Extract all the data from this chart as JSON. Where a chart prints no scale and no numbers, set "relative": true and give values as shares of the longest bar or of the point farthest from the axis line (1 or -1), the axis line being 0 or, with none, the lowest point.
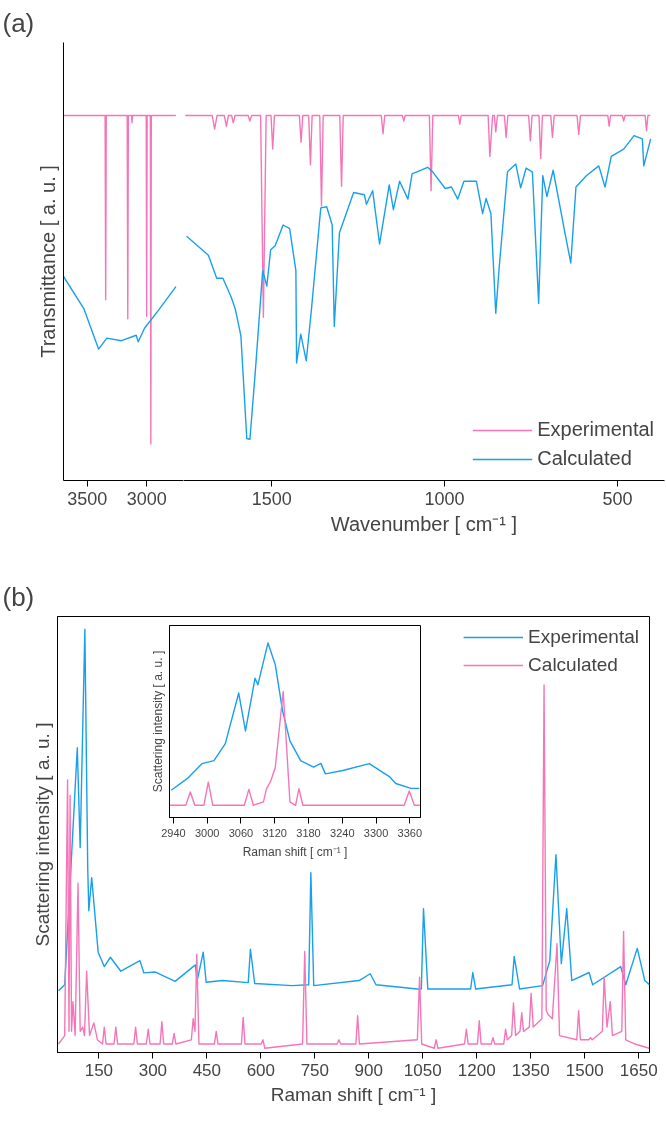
{
  "chart_data": [
    {
      "type": "line",
      "title": "(a)",
      "ylabel": "Transmittance [ a. u. ]",
      "relative": true,
      "tick_labels": "x",
      "xlim": [
        3700,
        2690
      ],
      "xticks": [
        3500,
        3000
      ],
      "series": [
        {
          "color": "#f576b8",
          "x": [
            3700,
            3350,
            3345,
            3340,
            3164,
            3159,
            3154,
            3127,
            3123,
            3119,
            3004,
            3000,
            2996,
            2969,
            2965,
            2961,
            2754
          ],
          "values": [
            1,
            1,
            0.495,
            1,
            1,
            0.443,
            1,
            1,
            0.98,
            1,
            1,
            0.45,
            1,
            1,
            0.1,
            1,
            1
          ]
        },
        {
          "color": "#18a0ec",
          "x": [
            3700,
            3529,
            3405,
            3335,
            3212,
            3088,
            3071,
            3018,
            2895,
            2754
          ],
          "values": [
            0.559,
            0.471,
            0.36,
            0.39,
            0.383,
            0.398,
            0.38,
            0.417,
            0.469,
            0.531
          ]
        }
      ]
    },
    {
      "type": "line",
      "xlabel": "Wavenumber [ cm⁻¹ ]",
      "relative": true,
      "tick_labels": "x",
      "legend": "bottom right",
      "xlim": [
        1755,
        364
      ],
      "xticks": [
        1500,
        1000,
        500
      ],
      "series": [
        {
          "name": "Experimental",
          "color": "#f576b8",
          "x": [
            1750,
            1672,
            1665,
            1658,
            1637,
            1631,
            1625,
            1616,
            1611,
            1606,
            1568,
            1563,
            1558,
            1532,
            1524,
            1516,
            1502,
            1497,
            1492,
            1420,
            1415,
            1410,
            1393,
            1388,
            1383,
            1361,
            1356,
            1351,
            1303,
            1298,
            1293,
            1183,
            1178,
            1173,
            1122,
            1118,
            1114,
            1044,
            1039,
            1034,
            960,
            956,
            952,
            874,
            869,
            861,
            856,
            852,
            847,
            827,
            822,
            817,
            757,
            752,
            747,
            727,
            722,
            717,
            693,
            688,
            683,
            617,
            612,
            607,
            528,
            524,
            520,
            486,
            482,
            478,
            420,
            416,
            412,
            405
          ],
          "values": [
            1,
            1,
            0.963,
            1,
            1,
            0.97,
            1,
            1,
            0.98,
            1,
            1,
            0.985,
            1,
            1,
            0.447,
            1,
            1,
            0.908,
            1,
            1,
            0.927,
            1,
            1,
            0.865,
            1,
            1,
            0.752,
            1,
            1,
            0.806,
            1,
            1,
            0.95,
            1,
            1,
            0.985,
            1,
            1,
            0.794,
            1,
            1,
            0.976,
            1,
            1,
            0.888,
            1,
            1,
            0.955,
            1,
            1,
            0.94,
            1,
            1,
            0.931,
            1,
            1,
            0.882,
            1,
            1,
            0.94,
            1,
            1,
            0.948,
            1,
            1,
            0.971,
            1,
            1,
            0.985,
            1,
            1,
            0.958,
            1,
            1
          ]
        },
        {
          "name": "Calculated",
          "color": "#18a0ec",
          "x": [
            1746,
            1683,
            1659,
            1641,
            1617,
            1605,
            1589,
            1572,
            1563,
            1548,
            1526,
            1514,
            1503,
            1490,
            1467,
            1448,
            1430,
            1428,
            1416,
            1400,
            1385,
            1358,
            1341,
            1325,
            1319,
            1304,
            1263,
            1232,
            1226,
            1208,
            1188,
            1160,
            1148,
            1130,
            1106,
            1094,
            1082,
            1049,
            1034,
            998,
            980,
            962,
            944,
            908,
            890,
            880,
            866,
            852,
            842,
            818,
            794,
            780,
            764,
            746,
            728,
            716,
            704,
            686,
            650,
            635,
            620,
            590,
            554,
            536,
            518,
            482,
            452,
            428,
            424,
            404
          ],
          "values": [
            0.669,
            0.617,
            0.554,
            0.554,
            0.502,
            0.469,
            0.396,
            0.115,
            0.113,
            0.29,
            0.575,
            0.533,
            0.632,
            0.643,
            0.7,
            0.69,
            0.575,
            0.322,
            0.401,
            0.328,
            0.469,
            0.747,
            0.75,
            0.7,
            0.422,
            0.679,
            0.789,
            0.783,
            0.757,
            0.794,
            0.648,
            0.81,
            0.742,
            0.82,
            0.771,
            0.84,
            0.845,
            0.858,
            0.845,
            0.8,
            0.804,
            0.771,
            0.82,
            0.82,
            0.731,
            0.773,
            0.731,
            0.458,
            0.585,
            0.846,
            0.867,
            0.802,
            0.856,
            0.845,
            0.485,
            0.835,
            0.778,
            0.85,
            0.669,
            0.596,
            0.804,
            0.835,
            0.862,
            0.804,
            0.888,
            0.908,
            0.945,
            0.936,
            0.862,
            0.936
          ]
        }
      ]
    },
    {
      "type": "line",
      "title": "(b)",
      "xlabel": "Raman shift [ cm⁻¹ ]",
      "ylabel": "Scattering intensity [ a. u. ]",
      "relative": true,
      "tick_labels": "x",
      "legend": "top right",
      "xlim": [
        35,
        1680
      ],
      "xticks": [
        150,
        300,
        450,
        600,
        750,
        900,
        1050,
        1200,
        1350,
        1500,
        1650
      ],
      "series": [
        {
          "name": "Experimental",
          "color": "#18a0ec",
          "x": [
            38,
            55,
            90,
            98,
            111,
            119,
            122,
            130,
            148,
            165,
            182,
            211,
            264,
            275,
            307,
            362,
            418,
            423,
            440,
            448,
            493,
            565,
            571,
            583,
            687,
            733,
            739,
            747,
            873,
            904,
            920,
            1035,
            1046,
            1052,
            1064,
            1183,
            1189,
            1197,
            1298,
            1304,
            1319,
            1383,
            1403,
            1420,
            1435,
            1450,
            1464,
            1512,
            1522,
            1600,
            1614,
            1646,
            1667,
            1680
          ],
          "values": [
            0.146,
            0.16,
            0.72,
            0.484,
            1.0,
            0.435,
            0.335,
            0.413,
            0.237,
            0.203,
            0.225,
            0.192,
            0.217,
            0.188,
            0.19,
            0.168,
            0.207,
            0.17,
            0.237,
            0.166,
            0.17,
            0.165,
            0.244,
            0.163,
            0.158,
            0.16,
            0.425,
            0.158,
            0.17,
            0.186,
            0.16,
            0.15,
            0.15,
            0.34,
            0.15,
            0.15,
            0.189,
            0.15,
            0.16,
            0.227,
            0.15,
            0.158,
            0.217,
            0.467,
            0.21,
            0.34,
            0.17,
            0.189,
            0.16,
            0.203,
            0.16,
            0.246,
            0.17,
            0.16
          ]
        },
        {
          "name": "Calculated",
          "color": "#f576b8",
          "x": [
            38,
            55,
            63,
            67,
            70,
            74,
            78,
            84,
            92,
            98,
            105,
            110,
            116,
            124,
            136,
            146,
            160,
            165,
            170,
            192,
            197,
            202,
            247,
            252,
            257,
            282,
            287,
            292,
            320,
            325,
            330,
            354,
            359,
            364,
            407,
            412,
            417,
            422,
            428,
            471,
            476,
            481,
            546,
            551,
            556,
            601,
            606,
            611,
            716,
            722,
            728,
            812,
            817,
            822,
            864,
            869,
            874,
            1035,
            1041,
            1047,
            1082,
            1087,
            1092,
            1166,
            1171,
            1176,
            1202,
            1207,
            1212,
            1240,
            1245,
            1250,
            1275,
            1280,
            1285,
            1297,
            1302,
            1308,
            1320,
            1325,
            1330,
            1346,
            1351,
            1357,
            1381,
            1387,
            1393,
            1398,
            1410,
            1423,
            1430,
            1478,
            1483,
            1488,
            1511,
            1516,
            1521,
            1549,
            1554,
            1562,
            1571,
            1577,
            1603,
            1608,
            1614,
            1640,
            1679
          ],
          "values": [
            0.02,
            0.04,
            0.644,
            0.05,
            0.607,
            0.05,
            0.12,
            0.04,
            0.4,
            0.05,
            0.06,
            0.04,
            0.192,
            0.04,
            0.07,
            0.03,
            0.02,
            0.06,
            0.02,
            0.02,
            0.06,
            0.02,
            0.02,
            0.06,
            0.02,
            0.02,
            0.055,
            0.02,
            0.02,
            0.073,
            0.02,
            0.02,
            0.045,
            0.02,
            0.03,
            0.08,
            0.05,
            0.232,
            0.02,
            0.02,
            0.05,
            0.02,
            0.02,
            0.083,
            0.02,
            0.02,
            0.03,
            0.01,
            0.02,
            0.239,
            0.02,
            0.02,
            0.03,
            0.02,
            0.02,
            0.087,
            0.02,
            0.03,
            0.178,
            0.02,
            0.01,
            0.03,
            0.01,
            0.02,
            0.055,
            0.02,
            0.02,
            0.075,
            0.02,
            0.02,
            0.035,
            0.02,
            0.02,
            0.055,
            0.03,
            0.04,
            0.117,
            0.04,
            0.05,
            0.094,
            0.05,
            0.06,
            0.14,
            0.06,
            0.08,
            0.868,
            0.1,
            0.09,
            0.08,
            0.257,
            0.04,
            0.03,
            0.099,
            0.03,
            0.03,
            0.035,
            0.03,
            0.05,
            0.178,
            0.06,
            0.12,
            0.04,
            0.05,
            0.286,
            0.03,
            0.02,
            0.01
          ]
        }
      ]
    },
    {
      "type": "line",
      "xlabel": "Raman shift [ cm⁻¹ ]",
      "ylabel": "Scattering intensity [ a. u. ]",
      "relative": true,
      "tick_labels": "x",
      "xlim": [
        2933,
        3379
      ],
      "xticks": [
        2940,
        3000,
        3060,
        3120,
        3180,
        3240,
        3300,
        3360
      ],
      "series": [
        {
          "color": "#18a0ec",
          "x": [
            2936,
            2965,
            2991,
            3012,
            3032,
            3056,
            3068,
            3085,
            3090,
            3108,
            3121,
            3134,
            3147,
            3166,
            3189,
            3202,
            3210,
            3241,
            3288,
            3325,
            3335,
            3362,
            3377
          ],
          "values": [
            0.156,
            0.224,
            0.309,
            0.326,
            0.422,
            0.713,
            0.496,
            0.798,
            0.76,
            1.0,
            0.875,
            0.609,
            0.439,
            0.326,
            0.288,
            0.31,
            0.25,
            0.269,
            0.309,
            0.231,
            0.195,
            0.167,
            0.167
          ]
        },
        {
          "color": "#f576b8",
          "x": [
            2933,
            2962,
            2970,
            2978,
            2994,
            3002,
            3010,
            3066,
            3074,
            3082,
            3100,
            3105,
            3113,
            3121,
            3135,
            3147,
            3157,
            3163,
            3170,
            3350,
            3359,
            3368,
            3378
          ],
          "values": [
            0.07,
            0.07,
            0.146,
            0.07,
            0.07,
            0.203,
            0.07,
            0.07,
            0.161,
            0.07,
            0.09,
            0.161,
            0.21,
            0.288,
            0.722,
            0.09,
            0.07,
            0.165,
            0.07,
            0.07,
            0.152,
            0.07,
            0.07
          ]
        }
      ]
    }
  ]
}
